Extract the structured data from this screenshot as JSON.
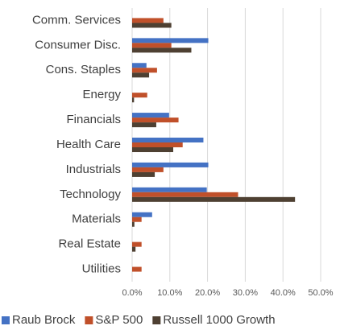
{
  "chart_data": {
    "type": "bar",
    "orientation": "horizontal",
    "categories": [
      "Comm. Services",
      "Consumer Disc.",
      "Cons. Staples",
      "Energy",
      "Financials",
      "Health Care",
      "Industrials",
      "Technology",
      "Materials",
      "Real Estate",
      "Utilities"
    ],
    "series": [
      {
        "name": "Raub Brock",
        "color": "#4472c4",
        "values": [
          0,
          20.2,
          3.8,
          0,
          9.8,
          18.9,
          20.2,
          19.8,
          5.3,
          0,
          0
        ]
      },
      {
        "name": "S&P 500",
        "color": "#c0502a",
        "values": [
          8.3,
          10.4,
          6.6,
          4.0,
          12.3,
          13.4,
          8.3,
          28.1,
          2.5,
          2.5,
          2.5
        ]
      },
      {
        "name": "Russell 1000 Growth",
        "color": "#4e4032",
        "values": [
          10.4,
          15.7,
          4.5,
          0.5,
          6.4,
          10.9,
          6.0,
          43.2,
          0.6,
          0.9,
          0
        ]
      }
    ],
    "xlim": [
      0,
      50
    ],
    "xticks": [
      {
        "value": 0,
        "label": "0.0%"
      },
      {
        "value": 10,
        "label": "10.0%"
      },
      {
        "value": 20,
        "label": "20.0%"
      },
      {
        "value": 30,
        "label": "30.0%"
      },
      {
        "value": 40,
        "label": "40.0%"
      },
      {
        "value": 50,
        "label": "50.0%"
      }
    ],
    "grid": true,
    "legend": "bottom"
  }
}
